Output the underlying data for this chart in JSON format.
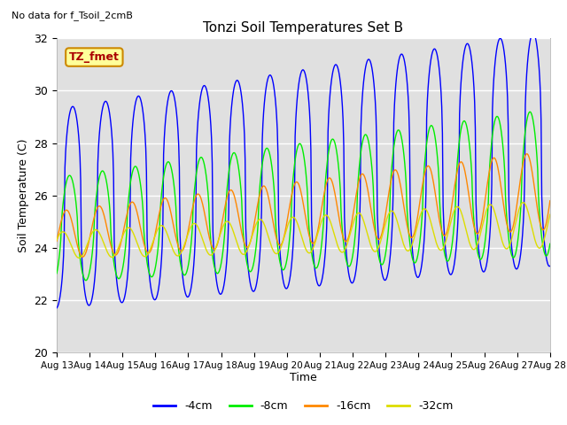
{
  "title": "Tonzi Soil Temperatures Set B",
  "ylabel": "Soil Temperature (C)",
  "xlabel": "Time",
  "no_data_text": "No data for f_Tsoil_2cmB",
  "label_box_text": "TZ_fmet",
  "ylim": [
    20,
    32
  ],
  "yticks": [
    20,
    22,
    24,
    26,
    28,
    30,
    32
  ],
  "xtick_labels": [
    "Aug 13",
    "Aug 14",
    "Aug 15",
    "Aug 16",
    "Aug 17",
    "Aug 18",
    "Aug 19",
    "Aug 20",
    "Aug 21",
    "Aug 22",
    "Aug 23",
    "Aug 24",
    "Aug 25",
    "Aug 26",
    "Aug 27",
    "Aug 28"
  ],
  "colors": {
    "-4cm": "#0000ff",
    "-8cm": "#00ee00",
    "-16cm": "#ff8800",
    "-32cm": "#dddd00"
  },
  "legend_entries": [
    "-4cm",
    "-8cm",
    "-16cm",
    "-32cm"
  ],
  "background_color": "#e0e0e0",
  "fig_background": "#ffffff",
  "grid_color": "#ffffff",
  "label_box_color": "#ffff99",
  "label_box_edge": "#cc8800",
  "label_text_color": "#aa0000"
}
